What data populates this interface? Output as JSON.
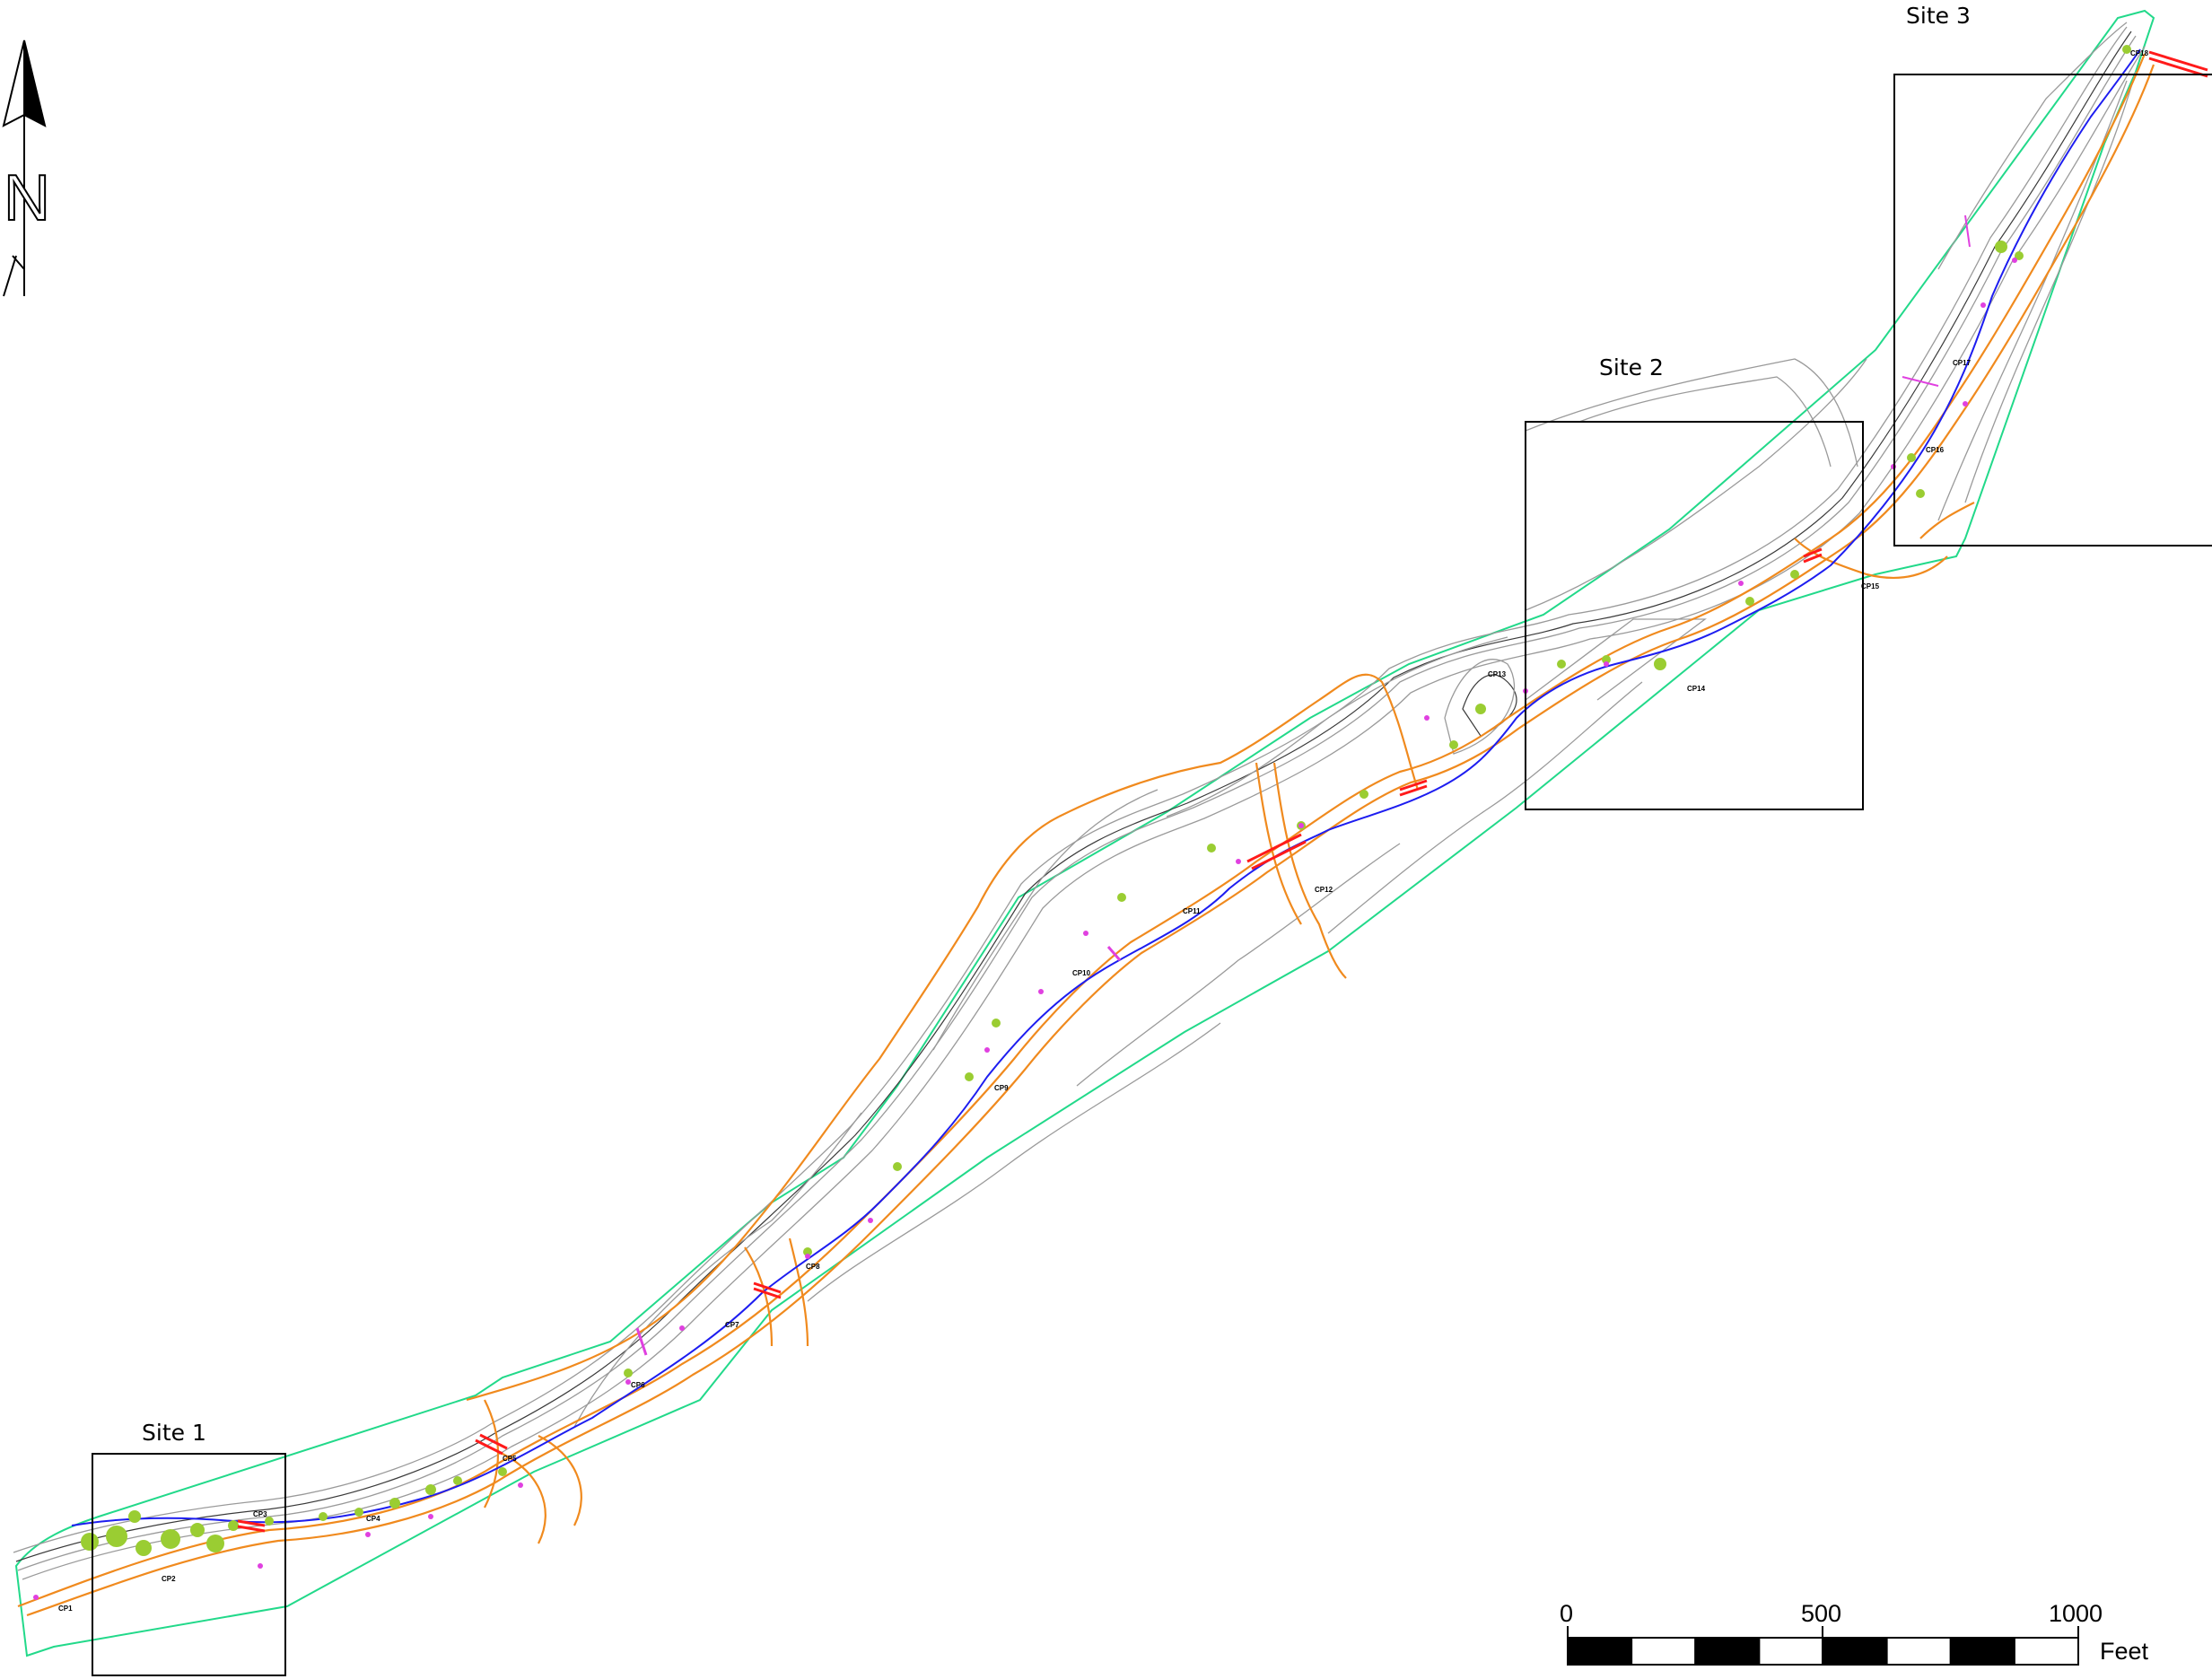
{
  "north_arrow": {
    "label": "N"
  },
  "sites": [
    {
      "id": "site-1",
      "label": "Site 1"
    },
    {
      "id": "site-2",
      "label": "Site 2"
    },
    {
      "id": "site-3",
      "label": "Site 3"
    }
  ],
  "checkpoints": [
    "CP1",
    "CP2",
    "CP3",
    "CP4",
    "CP5",
    "CP6",
    "CP7",
    "CP8",
    "CP9",
    "CP10",
    "CP11",
    "CP12",
    "CP13",
    "CP14",
    "CP15",
    "CP16",
    "CP17",
    "CP18"
  ],
  "scale_bar": {
    "ticks": [
      "0",
      "500",
      "1000"
    ],
    "unit": "Feet",
    "segments": 8
  },
  "colors": {
    "boundary": "#22d98a",
    "channel": "#1d1df0",
    "roads": "#f08a1e",
    "contours": "#9a9a9a",
    "vegetation": "#9acd32",
    "crossings": "#ff1a1a",
    "markers": "#e040e0"
  }
}
